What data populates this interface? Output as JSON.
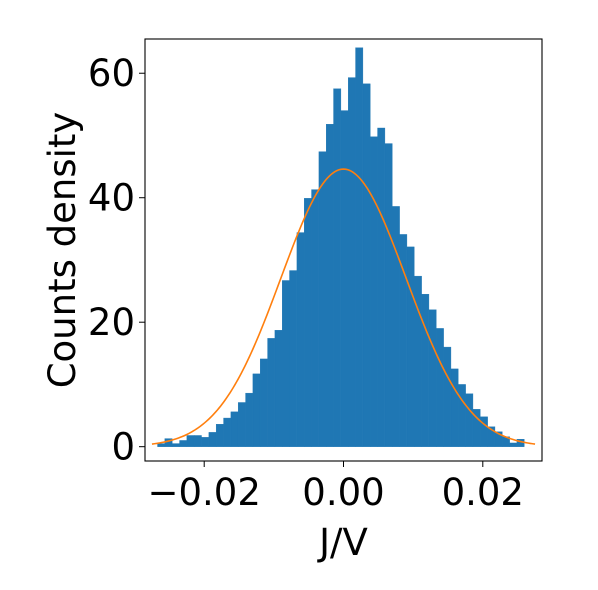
{
  "chart_data": {
    "type": "bar",
    "xlabel": "J/V",
    "ylabel": "Counts density",
    "xlim": [
      -0.0285,
      0.0285
    ],
    "ylim": [
      -2.3,
      65.5
    ],
    "x_ticks": [
      -0.02,
      0.0,
      0.02
    ],
    "x_tick_labels": [
      "−0.02",
      "0.00",
      "0.02"
    ],
    "y_ticks": [
      0,
      20,
      40,
      60
    ],
    "y_tick_labels": [
      "0",
      "20",
      "40",
      "60"
    ],
    "grid": false,
    "bin_width": 0.0010533,
    "bin_left_edges": [
      -0.0267,
      -0.02565,
      -0.0246,
      -0.02354,
      -0.02249,
      -0.02144,
      -0.02038,
      -0.01933,
      -0.01828,
      -0.01722,
      -0.01617,
      -0.01512,
      -0.01406,
      -0.01301,
      -0.01196,
      -0.0109,
      -0.00985,
      -0.0088,
      -0.00775,
      -0.00669,
      -0.00564,
      -0.00459,
      -0.00353,
      -0.00248,
      -0.00143,
      -0.00037,
      0.00068,
      0.00173,
      0.00279,
      0.00384,
      0.00489,
      0.00595,
      0.007,
      0.00805,
      0.00911,
      0.01016,
      0.01121,
      0.01227,
      0.01332,
      0.01437,
      0.01542,
      0.01648,
      0.01753,
      0.01858,
      0.01964,
      0.02069,
      0.02174,
      0.0228,
      0.02385,
      0.0249
    ],
    "counts": [
      0.5,
      1.3,
      0.5,
      1.0,
      1.8,
      1.8,
      1.5,
      2.3,
      3.6,
      4.6,
      5.6,
      7.1,
      8.6,
      11.7,
      14.1,
      17.4,
      18.7,
      26.7,
      28.3,
      34.4,
      39.9,
      41.3,
      47.4,
      51.8,
      57.5,
      54.0,
      59.3,
      64.1,
      58.3,
      49.8,
      51.2,
      48.7,
      38.6,
      34.1,
      32.1,
      27.4,
      24.5,
      22.0,
      19.0,
      16.0,
      12.5,
      10.0,
      8.5,
      6.0,
      4.8,
      3.2,
      2.4,
      1.6,
      0.6,
      1.2
    ],
    "bar_color": "#1f77b4",
    "fit_curve": {
      "type": "gaussian",
      "mean": 0.0,
      "sigma": 0.009,
      "peak": 44.6,
      "range": [
        -0.0275,
        0.0275
      ],
      "color": "#ff7f0e"
    }
  }
}
